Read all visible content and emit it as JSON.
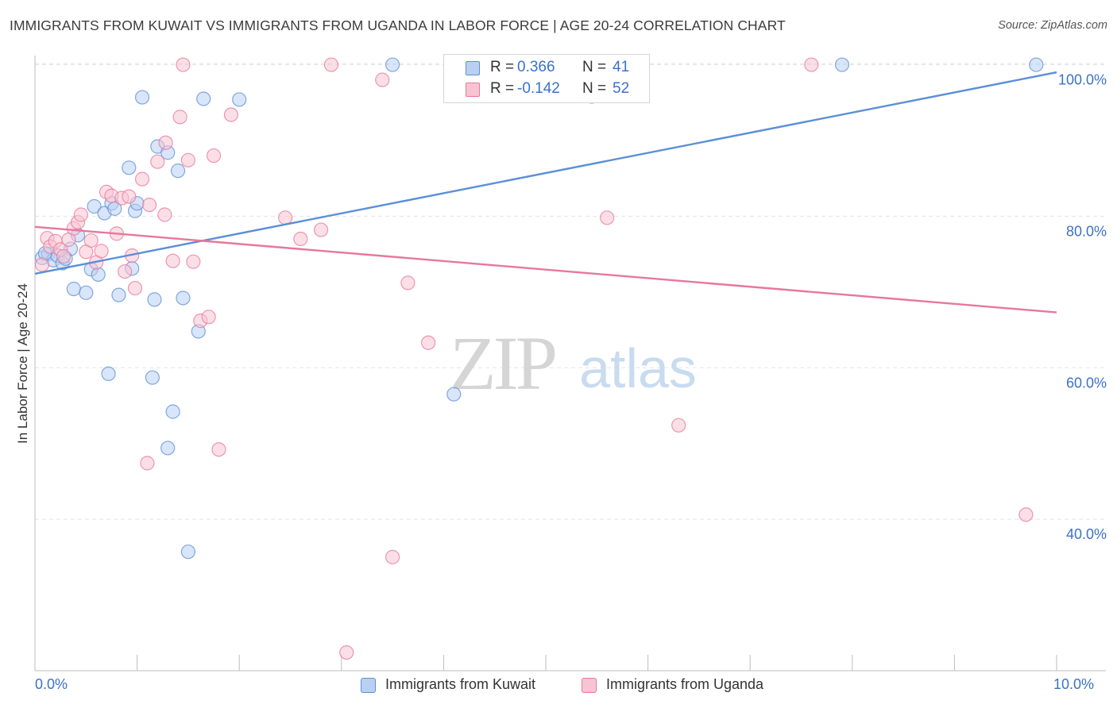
{
  "header": {
    "title": "IMMIGRANTS FROM KUWAIT VS IMMIGRANTS FROM UGANDA IN LABOR FORCE | AGE 20-24 CORRELATION CHART",
    "source": "Source: ZipAtlas.com"
  },
  "watermark": {
    "zip": "ZIP",
    "atlas": "atlas"
  },
  "legend_top": {
    "rows": [
      {
        "r_label": "R =",
        "r_value": "0.366",
        "n_label": "N =",
        "n_value": "41",
        "color": "#5b8fd6"
      },
      {
        "r_label": "R =",
        "r_value": "-0.142",
        "n_label": "N =",
        "n_value": "52",
        "color": "#e8779b"
      }
    ]
  },
  "legend_bottom": {
    "items": [
      {
        "label": "Immigrants from Kuwait",
        "color": "#5b8fd6"
      },
      {
        "label": "Immigrants from Uganda",
        "color": "#e8779b"
      }
    ]
  },
  "chart_data": {
    "type": "scatter",
    "title": "IMMIGRANTS FROM KUWAIT VS IMMIGRANTS FROM UGANDA IN LABOR FORCE | AGE 20-24 CORRELATION CHART",
    "xlabel": "",
    "ylabel": "In Labor Force | Age 20-24",
    "xlim": [
      0,
      10
    ],
    "ylim": [
      20,
      101
    ],
    "x_tick_labels": [
      "0.0%",
      "10.0%"
    ],
    "y_ticks": [
      40,
      60,
      80,
      100
    ],
    "y_tick_labels": [
      "40.0%",
      "60.0%",
      "80.0%",
      "100.0%"
    ],
    "grid": "horizontal dashed",
    "legend": "bottom",
    "series": [
      {
        "name": "Immigrants from Kuwait",
        "color": "#5b8fd6",
        "fill": "#b9d0f2",
        "points": [
          [
            0.07,
            74.5
          ],
          [
            0.13,
            75.0
          ],
          [
            0.18,
            74.2
          ],
          [
            0.22,
            74.8
          ],
          [
            0.27,
            73.8
          ],
          [
            0.35,
            75.7
          ],
          [
            0.42,
            77.5
          ],
          [
            0.38,
            70.4
          ],
          [
            0.5,
            69.9
          ],
          [
            0.55,
            73.0
          ],
          [
            0.58,
            81.3
          ],
          [
            0.62,
            72.3
          ],
          [
            0.68,
            80.4
          ],
          [
            0.72,
            59.2
          ],
          [
            0.75,
            81.7
          ],
          [
            0.78,
            81.0
          ],
          [
            0.82,
            69.6
          ],
          [
            0.92,
            86.4
          ],
          [
            0.95,
            73.1
          ],
          [
            0.98,
            80.7
          ],
          [
            1.0,
            81.7
          ],
          [
            1.05,
            95.7
          ],
          [
            1.15,
            58.7
          ],
          [
            1.17,
            69.0
          ],
          [
            1.2,
            89.2
          ],
          [
            1.3,
            49.4
          ],
          [
            1.3,
            88.4
          ],
          [
            1.35,
            54.2
          ],
          [
            1.4,
            86.0
          ],
          [
            1.45,
            69.2
          ],
          [
            1.5,
            35.7
          ],
          [
            1.6,
            64.8
          ],
          [
            1.65,
            95.5
          ],
          [
            2.0,
            95.4
          ],
          [
            3.5,
            100.0
          ],
          [
            4.1,
            56.5
          ],
          [
            5.0,
            100.0
          ],
          [
            7.9,
            100.0
          ],
          [
            9.8,
            100.0
          ],
          [
            0.1,
            75.1
          ],
          [
            0.3,
            74.4
          ]
        ],
        "trend": [
          [
            0,
            72.4
          ],
          [
            10,
            99.0
          ]
        ]
      },
      {
        "name": "Immigrants from Uganda",
        "color": "#e8779b",
        "fill": "#f7c4d4",
        "points": [
          [
            0.07,
            73.6
          ],
          [
            0.12,
            77.1
          ],
          [
            0.15,
            76.0
          ],
          [
            0.2,
            76.7
          ],
          [
            0.25,
            75.6
          ],
          [
            0.28,
            74.7
          ],
          [
            0.33,
            76.9
          ],
          [
            0.38,
            78.4
          ],
          [
            0.42,
            79.2
          ],
          [
            0.45,
            80.2
          ],
          [
            0.5,
            75.3
          ],
          [
            0.55,
            76.8
          ],
          [
            0.6,
            73.9
          ],
          [
            0.65,
            75.4
          ],
          [
            0.7,
            83.2
          ],
          [
            0.75,
            82.7
          ],
          [
            0.8,
            77.7
          ],
          [
            0.85,
            82.4
          ],
          [
            0.88,
            72.7
          ],
          [
            0.92,
            82.6
          ],
          [
            0.95,
            74.8
          ],
          [
            0.98,
            70.5
          ],
          [
            1.05,
            84.9
          ],
          [
            1.1,
            47.4
          ],
          [
            1.12,
            81.5
          ],
          [
            1.2,
            87.2
          ],
          [
            1.27,
            80.2
          ],
          [
            1.28,
            89.7
          ],
          [
            1.35,
            74.1
          ],
          [
            1.42,
            93.1
          ],
          [
            1.5,
            87.4
          ],
          [
            1.55,
            74.0
          ],
          [
            1.62,
            66.2
          ],
          [
            1.7,
            66.7
          ],
          [
            1.75,
            88.0
          ],
          [
            1.8,
            49.2
          ],
          [
            1.92,
            93.4
          ],
          [
            1.45,
            100.0
          ],
          [
            2.45,
            79.8
          ],
          [
            2.6,
            77.0
          ],
          [
            2.8,
            78.2
          ],
          [
            2.9,
            100.0
          ],
          [
            3.05,
            22.4
          ],
          [
            3.4,
            98.0
          ],
          [
            3.5,
            35.0
          ],
          [
            3.65,
            71.2
          ],
          [
            3.85,
            63.3
          ],
          [
            5.45,
            95.8
          ],
          [
            5.6,
            79.8
          ],
          [
            6.3,
            52.4
          ],
          [
            7.6,
            100.0
          ],
          [
            9.7,
            40.6
          ]
        ],
        "trend": [
          [
            0,
            78.6
          ],
          [
            10,
            67.3
          ]
        ]
      }
    ]
  }
}
